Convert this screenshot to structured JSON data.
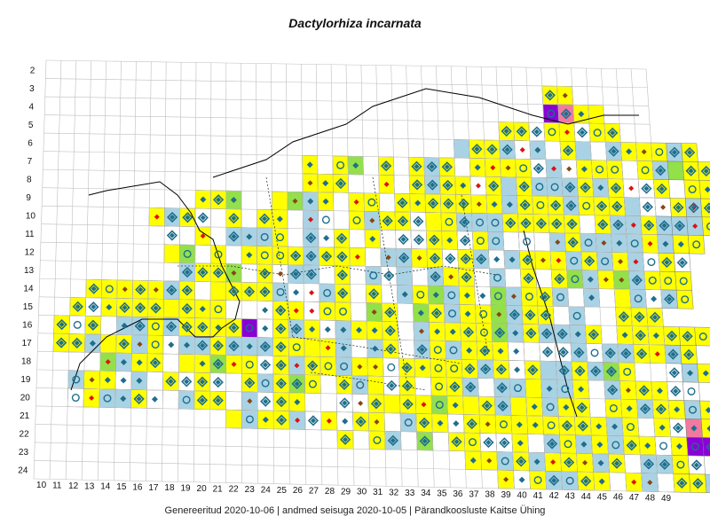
{
  "title": "Dactylorhiza incarnata",
  "footer": "Genereeritud 2020-10-06  |  andmed seisuga 2020-10-05  |  Pärandkoosluste Kaitse Ühing",
  "grid": {
    "row_labels": [
      "2",
      "3",
      "4",
      "5",
      "6",
      "7",
      "8",
      "9",
      "10",
      "11",
      "12",
      "13",
      "14",
      "15",
      "16",
      "17",
      "18",
      "19",
      "20",
      "21",
      "22",
      "23",
      "24"
    ],
    "col_labels": [
      "10",
      "11",
      "12",
      "13",
      "14",
      "15",
      "16",
      "17",
      "18",
      "19",
      "20",
      "21",
      "22",
      "23",
      "24",
      "25",
      "26",
      "27",
      "28",
      "29",
      "30",
      "31",
      "32",
      "33",
      "34",
      "35",
      "36",
      "37",
      "38",
      "39",
      "40",
      "41",
      "42",
      "43",
      "44",
      "45",
      "46",
      "47",
      "48",
      "49"
    ]
  },
  "colors": {
    "yellow": "#ffff00",
    "light_blue": "#a9d3e4",
    "green": "#93e04a",
    "pink": "#f07aa0",
    "purple": "#8a00d6",
    "white": "#ffffff",
    "symbol_blue": "#1f6e8c",
    "symbol_brown": "#8b4513",
    "symbol_red": "#dd1111",
    "grid_line": "#bfbfbf"
  },
  "legend_note": "?"
}
